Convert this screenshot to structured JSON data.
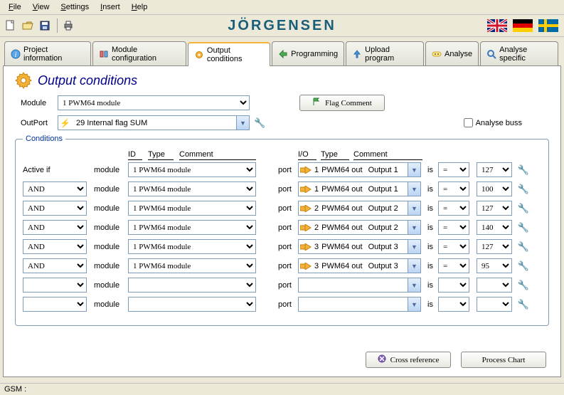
{
  "menu": {
    "file": "File",
    "view": "View",
    "settings": "Settings",
    "insert": "Insert",
    "help": "Help"
  },
  "brand": "JÖRGENSEN",
  "brand_color": "#1a5f7a",
  "tabs": {
    "project": "Project information",
    "module_cfg": "Module configuration",
    "output_cond": "Output conditions",
    "programming": "Programming",
    "upload": "Upload program",
    "analyse": "Analyse",
    "analyse_specific": "Analyse specific"
  },
  "page_title": "Output conditions",
  "module_label": "Module",
  "module_value": "1 PWM64 module",
  "outport_label": "OutPort",
  "outport_value": "29 Internal flag SUM",
  "flag_comment_btn": "Flag Comment",
  "analyse_buss_label": "Analyse buss",
  "conditions_legend": "Conditions",
  "headers": {
    "id": "ID",
    "type": "Type",
    "comment": "Comment",
    "io": "I/O",
    "type2": "Type",
    "comment2": "Comment"
  },
  "active_if": "Active if",
  "module_col_label": "module",
  "port_col_label": "port",
  "is_label": "is",
  "rows": [
    {
      "op": "",
      "module": "1 PWM64 module",
      "port_io": "1",
      "port_type": "PWM64 out",
      "port_comment": "Output 1",
      "cmp": "=",
      "val": "127"
    },
    {
      "op": "AND",
      "module": "1 PWM64 module",
      "port_io": "1",
      "port_type": "PWM64 out",
      "port_comment": "Output 1",
      "cmp": "=",
      "val": "100"
    },
    {
      "op": "AND",
      "module": "1 PWM64 module",
      "port_io": "2",
      "port_type": "PWM64 out",
      "port_comment": "Output 2",
      "cmp": "=",
      "val": "127"
    },
    {
      "op": "AND",
      "module": "1 PWM64 module",
      "port_io": "2",
      "port_type": "PWM64 out",
      "port_comment": "Output 2",
      "cmp": "=",
      "val": "140"
    },
    {
      "op": "AND",
      "module": "1 PWM64 module",
      "port_io": "3",
      "port_type": "PWM64 out",
      "port_comment": "Output 3",
      "cmp": "=",
      "val": "127"
    },
    {
      "op": "AND",
      "module": "1 PWM64 module",
      "port_io": "3",
      "port_type": "PWM64 out",
      "port_comment": "Output 3",
      "cmp": "=",
      "val": "95"
    },
    {
      "op": "",
      "module": "",
      "port_io": "",
      "port_type": "",
      "port_comment": "",
      "cmp": "",
      "val": ""
    },
    {
      "op": "",
      "module": "",
      "port_io": "",
      "port_type": "",
      "port_comment": "",
      "cmp": "",
      "val": ""
    }
  ],
  "cross_ref_btn": "Cross reference",
  "process_chart_btn": "Process Chart",
  "status_gsm": "GSM :",
  "colors": {
    "panel_bg": "#ece9d8",
    "page_bg": "#ffffff",
    "border": "#7f9db9",
    "title_color": "#00008b"
  }
}
